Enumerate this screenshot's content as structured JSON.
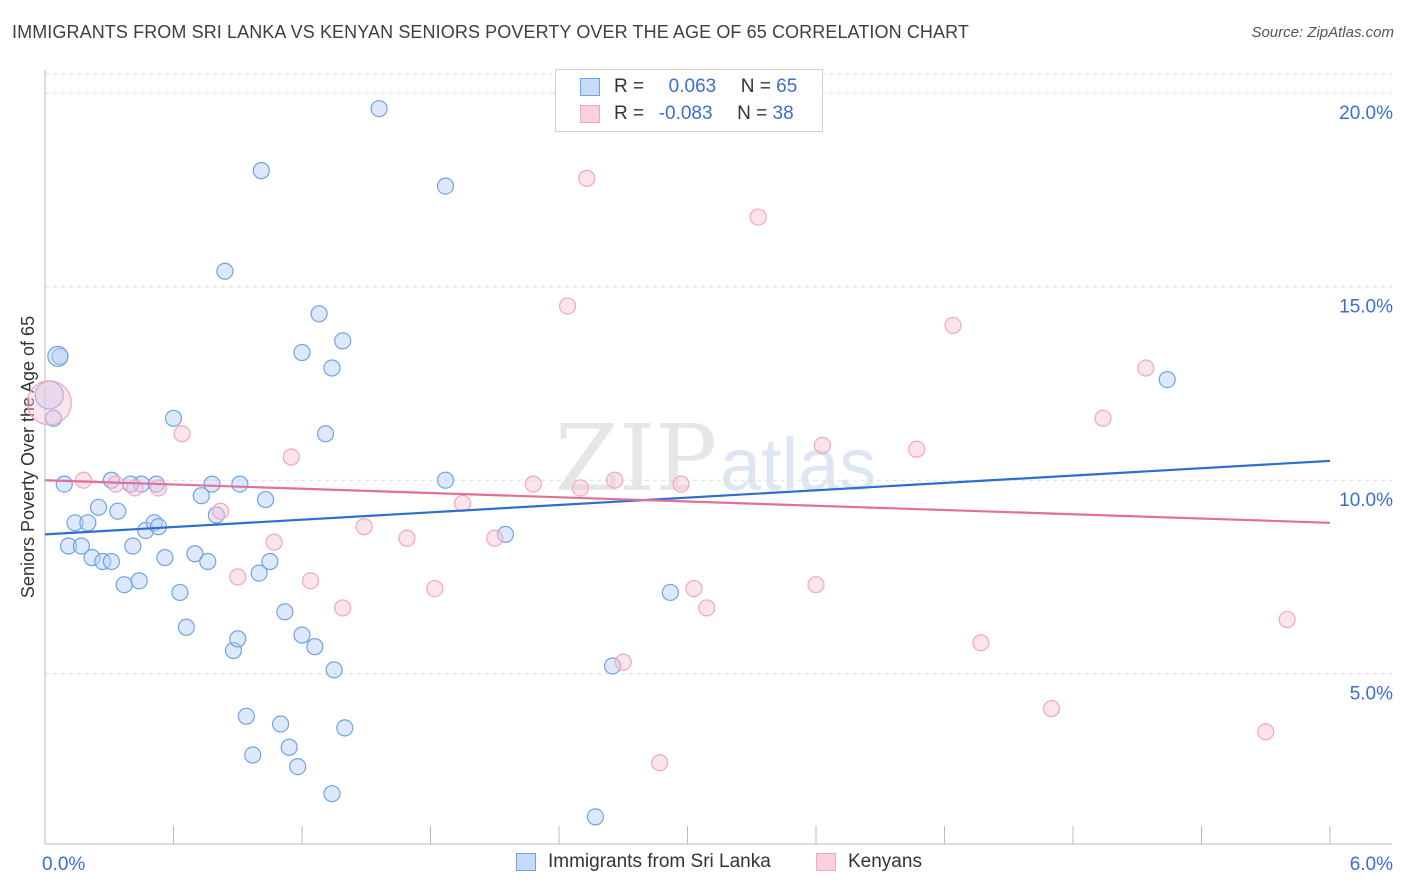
{
  "header": {
    "title": "IMMIGRANTS FROM SRI LANKA VS KENYAN SENIORS POVERTY OVER THE AGE OF 65 CORRELATION CHART",
    "source": "Source: ZipAtlas.com"
  },
  "watermark": {
    "zip": "ZIP",
    "atlas": "atlas"
  },
  "legend": {
    "rows": [
      {
        "r_label": "R =",
        "r_value": "0.063",
        "n_label": "N =",
        "n_value": "65"
      },
      {
        "r_label": "R =",
        "r_value": "-0.083",
        "n_label": "N =",
        "n_value": "38"
      }
    ]
  },
  "chart_data": {
    "type": "scatter",
    "xlabel": "",
    "ylabel": "Seniors Poverty Over the Age of 65",
    "xlim": [
      0,
      6
    ],
    "ylim": [
      0.6,
      20.6
    ],
    "x_tick_labels": [
      {
        "value": 0,
        "label": "0.0%"
      },
      {
        "value": 6,
        "label": "6.0%"
      }
    ],
    "y_tick_labels": [
      {
        "value": 5,
        "label": "5.0%"
      },
      {
        "value": 10,
        "label": "10.0%"
      },
      {
        "value": 15,
        "label": "15.0%"
      },
      {
        "value": 20,
        "label": "20.0%"
      }
    ],
    "grid": "horizontal dashed",
    "legend_position": "bottom-center",
    "series": [
      {
        "name": "Immigrants from Sri Lanka",
        "color": "#6fa3e8",
        "line_color": "#2c6fcf",
        "trend": {
          "x": [
            0,
            6
          ],
          "y": [
            8.6,
            10.5
          ]
        },
        "points": [
          [
            0.02,
            12.2
          ],
          [
            0.04,
            11.6
          ],
          [
            0.07,
            13.2
          ],
          [
            0.09,
            9.9
          ],
          [
            0.11,
            8.3
          ],
          [
            0.14,
            8.9
          ],
          [
            0.17,
            8.3
          ],
          [
            0.2,
            8.9
          ],
          [
            0.22,
            8.0
          ],
          [
            0.25,
            9.3
          ],
          [
            0.27,
            7.9
          ],
          [
            0.31,
            7.9
          ],
          [
            0.34,
            9.2
          ],
          [
            0.37,
            7.3
          ],
          [
            0.41,
            8.3
          ],
          [
            0.44,
            7.4
          ],
          [
            0.47,
            8.7
          ],
          [
            0.51,
            8.9
          ],
          [
            0.53,
            8.8
          ],
          [
            0.56,
            8.0
          ],
          [
            0.6,
            11.6
          ],
          [
            0.63,
            7.1
          ],
          [
            0.66,
            6.2
          ],
          [
            0.7,
            8.1
          ],
          [
            0.73,
            9.6
          ],
          [
            0.76,
            7.9
          ],
          [
            0.8,
            9.1
          ],
          [
            0.84,
            15.4
          ],
          [
            0.88,
            5.6
          ],
          [
            0.9,
            5.9
          ],
          [
            0.94,
            3.9
          ],
          [
            0.97,
            2.9
          ],
          [
            1.0,
            7.6
          ],
          [
            1.05,
            7.9
          ],
          [
            1.1,
            3.7
          ],
          [
            1.14,
            3.1
          ],
          [
            1.18,
            2.6
          ],
          [
            1.2,
            6.0
          ],
          [
            1.26,
            5.7
          ],
          [
            1.35,
            5.1
          ],
          [
            1.4,
            3.6
          ],
          [
            0.45,
            9.9
          ],
          [
            0.4,
            9.9
          ],
          [
            0.31,
            10.0
          ],
          [
            0.52,
            9.9
          ],
          [
            0.78,
            9.9
          ],
          [
            0.91,
            9.9
          ],
          [
            1.03,
            9.5
          ],
          [
            1.12,
            6.6
          ],
          [
            1.2,
            13.3
          ],
          [
            1.31,
            11.2
          ],
          [
            1.28,
            14.3
          ],
          [
            1.34,
            12.9
          ],
          [
            1.39,
            13.6
          ],
          [
            1.01,
            18.0
          ],
          [
            1.56,
            19.6
          ],
          [
            1.87,
            17.6
          ],
          [
            2.42,
            20.0
          ],
          [
            1.87,
            10.0
          ],
          [
            2.15,
            8.6
          ],
          [
            2.57,
            1.3
          ],
          [
            2.65,
            5.2
          ],
          [
            2.92,
            7.1
          ],
          [
            5.24,
            12.6
          ],
          [
            1.34,
            1.9
          ]
        ]
      },
      {
        "name": "Kenyans",
        "color": "#f4a6bd",
        "line_color": "#e0709a",
        "trend": {
          "x": [
            0,
            6
          ],
          "y": [
            10.0,
            8.9
          ]
        },
        "points": [
          [
            0.02,
            12.0
          ],
          [
            0.18,
            10.0
          ],
          [
            0.33,
            9.9
          ],
          [
            0.42,
            9.8
          ],
          [
            0.53,
            9.8
          ],
          [
            0.64,
            11.2
          ],
          [
            0.82,
            9.2
          ],
          [
            0.9,
            7.5
          ],
          [
            1.07,
            8.4
          ],
          [
            1.15,
            10.6
          ],
          [
            1.24,
            7.4
          ],
          [
            1.39,
            6.7
          ],
          [
            1.49,
            8.8
          ],
          [
            1.69,
            8.5
          ],
          [
            1.82,
            7.2
          ],
          [
            1.95,
            9.4
          ],
          [
            2.1,
            8.5
          ],
          [
            2.28,
            9.9
          ],
          [
            2.44,
            14.5
          ],
          [
            2.53,
            17.8
          ],
          [
            2.66,
            10.0
          ],
          [
            2.7,
            5.3
          ],
          [
            2.87,
            2.7
          ],
          [
            2.97,
            9.9
          ],
          [
            3.03,
            7.2
          ],
          [
            3.09,
            6.7
          ],
          [
            3.33,
            16.8
          ],
          [
            3.6,
            7.3
          ],
          [
            3.63,
            10.9
          ],
          [
            4.07,
            10.8
          ],
          [
            4.24,
            14.0
          ],
          [
            4.37,
            5.8
          ],
          [
            4.7,
            4.1
          ],
          [
            4.94,
            11.6
          ],
          [
            5.14,
            12.9
          ],
          [
            5.7,
            3.5
          ],
          [
            5.8,
            6.4
          ],
          [
            2.5,
            9.8
          ]
        ]
      }
    ]
  }
}
